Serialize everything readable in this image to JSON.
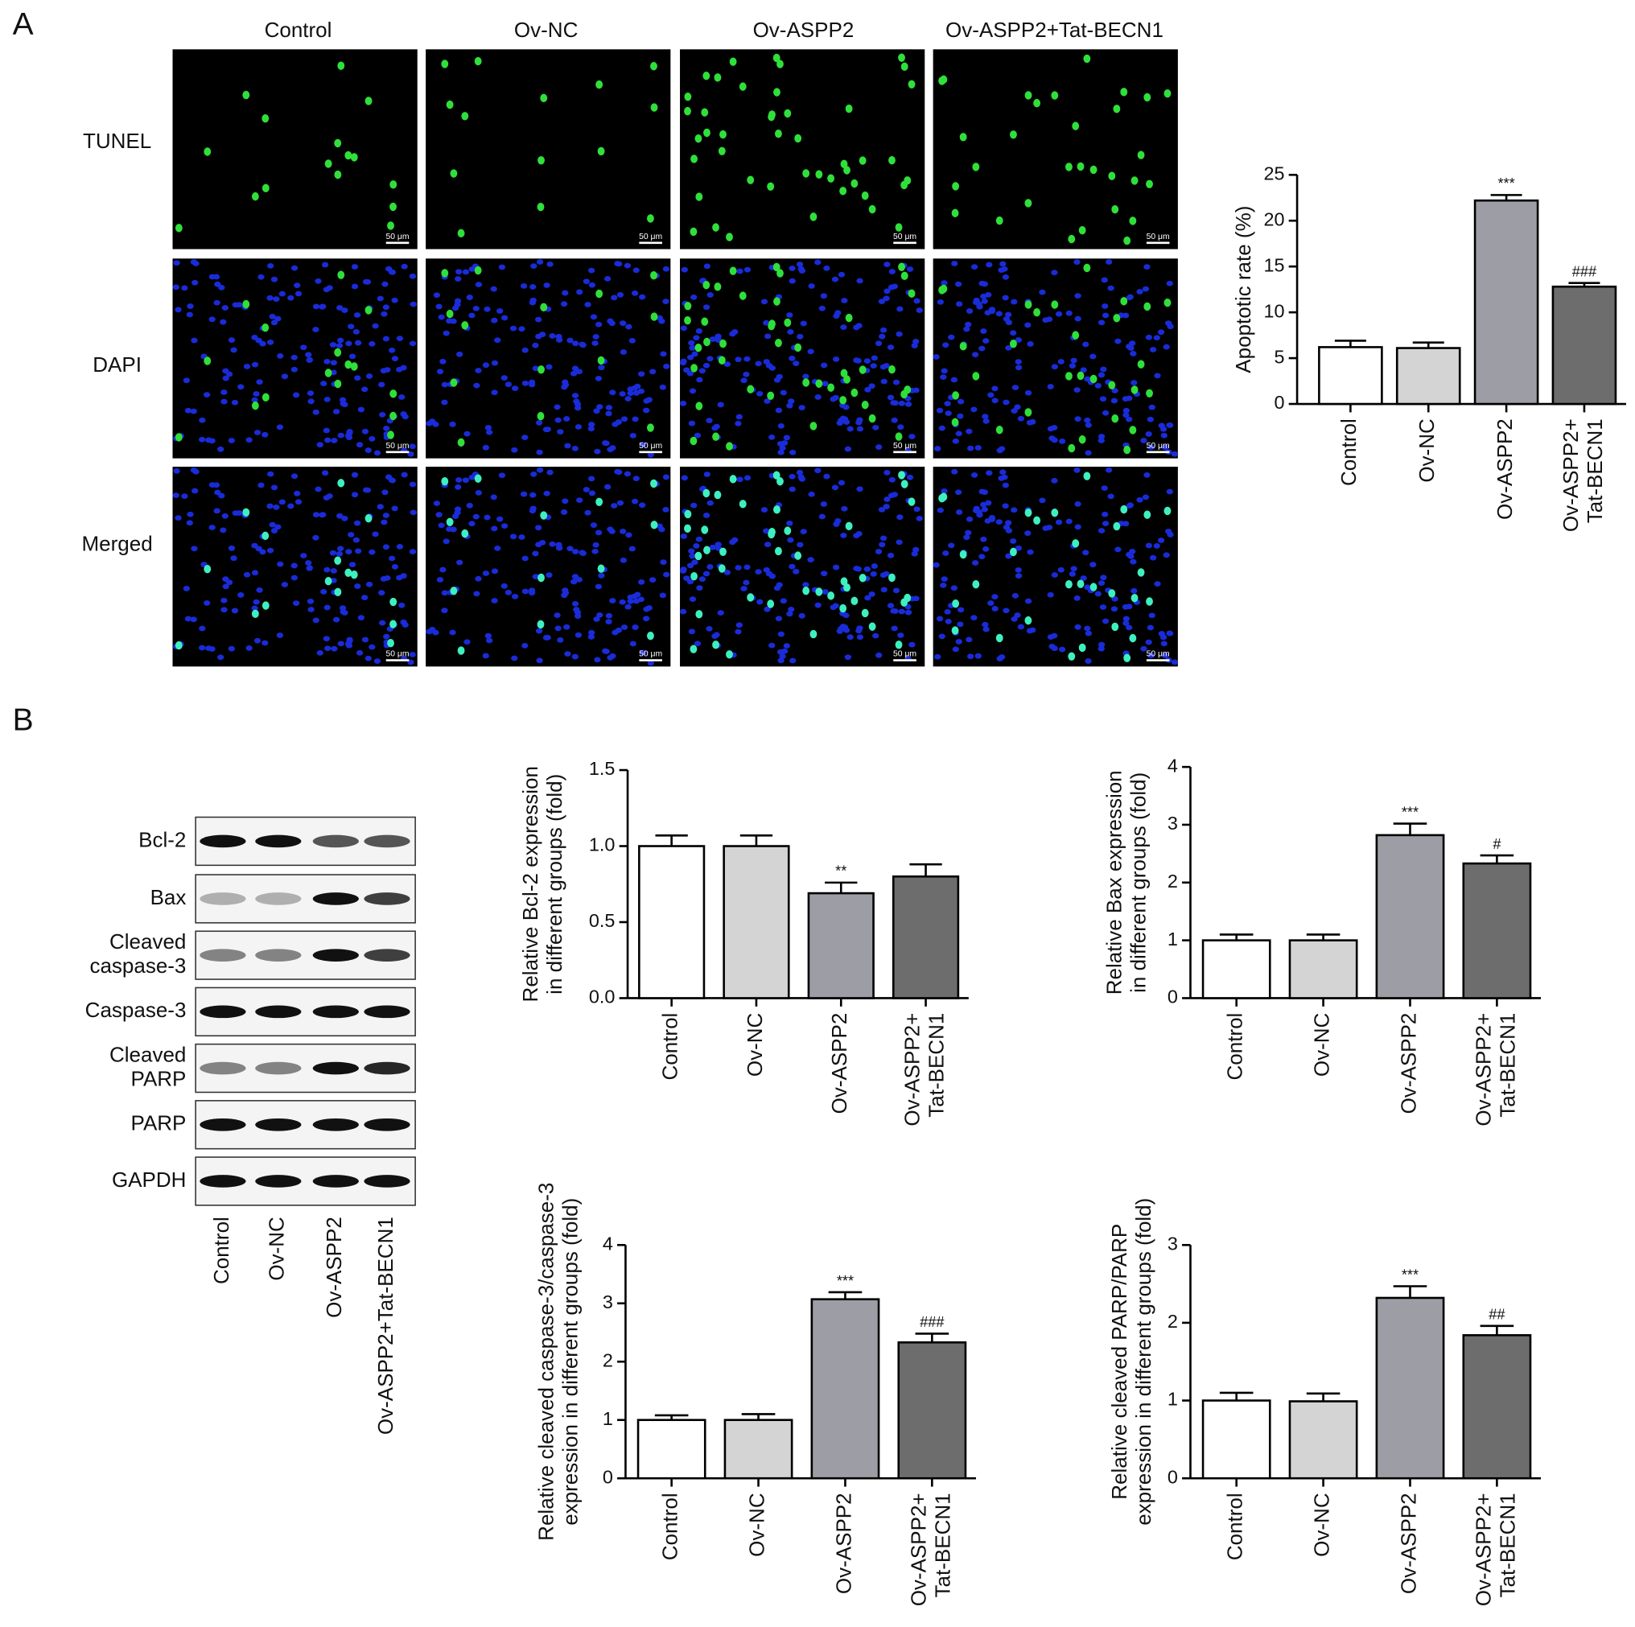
{
  "panel_labels": [
    "A",
    "B"
  ],
  "microscopy": {
    "columns": [
      "Control",
      "Ov-NC",
      "Ov-ASPP2",
      "Ov-ASPP2+Tat-BECN1"
    ],
    "rows": [
      "TUNEL",
      "DAPI",
      "Merged"
    ],
    "scale_bar": "50 μm"
  },
  "western_blot": {
    "bands": [
      "Bcl-2",
      "Bax",
      "Cleaved\ncaspase-3",
      "Caspase-3",
      "Cleaved\nPARP",
      "PARP",
      "GAPDH"
    ],
    "lanes": [
      "Control",
      "Ov-NC",
      "Ov-ASPP2",
      "Ov-ASPP2+Tat-BECN1"
    ]
  },
  "chart_data": [
    {
      "type": "bar",
      "ylabel": "Apoptotic rate (%)",
      "categories": [
        "Control",
        "Ov-NC",
        "Ov-ASPP2",
        "Ov-ASPP2+\nTat-BECN1"
      ],
      "values": [
        6.2,
        6.1,
        22.2,
        12.8
      ],
      "errors": [
        0.7,
        0.6,
        0.6,
        0.4
      ],
      "annotations": [
        null,
        null,
        "***",
        "###"
      ],
      "colors": [
        "#ffffff",
        "#d4d4d4",
        "#9d9da5",
        "#6d6d6d"
      ],
      "ylim": [
        0,
        25
      ],
      "yticks": [
        0,
        5,
        10,
        15,
        20,
        25
      ]
    },
    {
      "type": "bar",
      "ylabel": "Relative Bcl-2 expression\nin different groups (fold)",
      "categories": [
        "Control",
        "Ov-NC",
        "Ov-ASPP2",
        "Ov-ASPP2+\nTat-BECN1"
      ],
      "values": [
        1.0,
        1.0,
        0.69,
        0.8
      ],
      "errors": [
        0.07,
        0.07,
        0.07,
        0.08
      ],
      "annotations": [
        null,
        null,
        "**",
        null
      ],
      "colors": [
        "#ffffff",
        "#d4d4d4",
        "#9d9da5",
        "#6d6d6d"
      ],
      "ylim": [
        0,
        1.5
      ],
      "yticks": [
        {
          "value": 0,
          "label": "0.0"
        },
        0.5,
        {
          "value": 1,
          "label": "1.0"
        },
        1.5
      ]
    },
    {
      "type": "bar",
      "ylabel": "Relative Bax expression\nin different groups (fold)",
      "categories": [
        "Control",
        "Ov-NC",
        "Ov-ASPP2",
        "Ov-ASPP2+\nTat-BECN1"
      ],
      "values": [
        1.0,
        1.0,
        2.82,
        2.33
      ],
      "errors": [
        0.1,
        0.1,
        0.2,
        0.14
      ],
      "annotations": [
        null,
        null,
        "***",
        "#"
      ],
      "colors": [
        "#ffffff",
        "#d4d4d4",
        "#9d9da5",
        "#6d6d6d"
      ],
      "ylim": [
        0,
        4
      ],
      "yticks": [
        0,
        1,
        2,
        3,
        4
      ]
    },
    {
      "type": "bar",
      "ylabel": "Relative cleaved caspase-3/caspase-3\nexpression in different groups (fold)",
      "categories": [
        "Control",
        "Ov-NC",
        "Ov-ASPP2",
        "Ov-ASPP2+\nTat-BECN1"
      ],
      "values": [
        1.0,
        1.0,
        3.07,
        2.33
      ],
      "errors": [
        0.08,
        0.1,
        0.12,
        0.15
      ],
      "annotations": [
        null,
        null,
        "***",
        "###"
      ],
      "colors": [
        "#ffffff",
        "#d4d4d4",
        "#9d9da5",
        "#6d6d6d"
      ],
      "ylim": [
        0,
        4
      ],
      "yticks": [
        0,
        1,
        2,
        3,
        4
      ]
    },
    {
      "type": "bar",
      "ylabel": "Relative cleaved PARP/PARP\nexpression in different groups (fold)",
      "categories": [
        "Control",
        "Ov-NC",
        "Ov-ASPP2",
        "Ov-ASPP2+\nTat-BECN1"
      ],
      "values": [
        1.0,
        0.99,
        2.32,
        1.84
      ],
      "errors": [
        0.1,
        0.1,
        0.15,
        0.12
      ],
      "annotations": [
        null,
        null,
        "***",
        "##"
      ],
      "colors": [
        "#ffffff",
        "#d4d4d4",
        "#9d9da5",
        "#6d6d6d"
      ],
      "ylim": [
        0,
        3
      ],
      "yticks": [
        0,
        1,
        2,
        3
      ]
    }
  ]
}
